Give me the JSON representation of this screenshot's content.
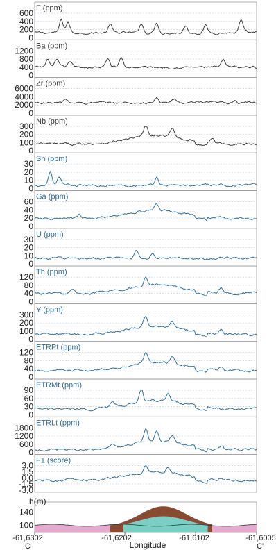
{
  "chart_data": {
    "type": "line",
    "xlabel": "Longitude",
    "x_ticks": [
      "-61,6302",
      "-61,6202",
      "-61,6102",
      "-61,6005"
    ],
    "endpoints": {
      "start": "C",
      "end": "C'"
    },
    "colors": {
      "black_series": "#3a3a3a",
      "blue_series": "#2f6f99",
      "grid": "#c6d6e4",
      "terrain_pink": "#e6a9cf",
      "terrain_brown": "#8a4a32",
      "terrain_teal": "#78d0c4"
    },
    "panels": [
      {
        "title": "F (ppm)",
        "title_color": "#333333",
        "series_color": "#3a3a3a",
        "yticks": [
          "600",
          "400",
          "200",
          "0"
        ],
        "ylim": [
          0,
          600
        ],
        "baseline": 120,
        "peaks": [
          [
            0.12,
            320
          ],
          [
            0.15,
            260
          ],
          [
            0.34,
            210
          ],
          [
            0.48,
            230
          ],
          [
            0.55,
            250
          ],
          [
            0.68,
            170
          ],
          [
            0.77,
            180
          ],
          [
            0.93,
            300
          ]
        ]
      },
      {
        "title": "Ba (ppm)",
        "title_color": "#333333",
        "series_color": "#3a3a3a",
        "yticks": [
          "1200",
          "800",
          "400",
          "0"
        ],
        "ylim": [
          0,
          1200
        ],
        "baseline": 400,
        "peaks": [
          [
            0.06,
            380
          ],
          [
            0.1,
            350
          ],
          [
            0.16,
            300
          ],
          [
            0.33,
            420
          ],
          [
            0.39,
            480
          ],
          [
            0.85,
            320
          ]
        ]
      },
      {
        "title": "Zr (ppm)",
        "title_color": "#333333",
        "series_color": "#3a3a3a",
        "yticks": [
          "6000",
          "4000",
          "2000",
          "0"
        ],
        "ylim": [
          0,
          6000
        ],
        "baseline": 2500,
        "peaks": [
          [
            0.14,
            900
          ],
          [
            0.55,
            1200
          ],
          [
            0.63,
            900
          ],
          [
            0.9,
            800
          ]
        ]
      },
      {
        "title": "Nb (ppm)",
        "title_color": "#333333",
        "series_color": "#3a3a3a",
        "yticks": [
          "300",
          "200",
          "100",
          "0"
        ],
        "ylim": [
          0,
          300
        ],
        "baseline": 80,
        "peaks": [
          [
            0.5,
            140
          ],
          [
            0.62,
            100
          ],
          [
            0.8,
            60
          ]
        ]
      },
      {
        "title": "Sn (ppm)",
        "title_color": "#2f6f99",
        "series_color": "#2f6f99",
        "yticks": [
          "30",
          "20",
          "10",
          "0"
        ],
        "ylim": [
          0,
          30
        ],
        "baseline": 4,
        "peaks": [
          [
            0.07,
            17
          ],
          [
            0.11,
            9
          ],
          [
            0.55,
            10
          ]
        ]
      },
      {
        "title": "Ga (ppm)",
        "title_color": "#2f6f99",
        "series_color": "#2f6f99",
        "yticks": [
          "60",
          "40",
          "20",
          "0"
        ],
        "ylim": [
          0,
          60
        ],
        "baseline": 18,
        "peaks": [
          [
            0.2,
            10
          ],
          [
            0.55,
            16
          ]
        ]
      },
      {
        "title": "U (ppm)",
        "title_color": "#2f6f99",
        "series_color": "#2f6f99",
        "yticks": [
          "30",
          "20",
          "10",
          "0"
        ],
        "ylim": [
          0,
          30
        ],
        "baseline": 7,
        "peaks": [
          [
            0.46,
            10
          ],
          [
            0.53,
            6
          ]
        ]
      },
      {
        "title": "Th (ppm)",
        "title_color": "#2f6f99",
        "series_color": "#2f6f99",
        "yticks": [
          "120",
          "80",
          "40",
          "0"
        ],
        "ylim": [
          0,
          120
        ],
        "baseline": 40,
        "peaks": [
          [
            0.17,
            20
          ],
          [
            0.5,
            40
          ],
          [
            0.84,
            25
          ]
        ]
      },
      {
        "title": "Y (ppm)",
        "title_color": "#2f6f99",
        "series_color": "#2f6f99",
        "yticks": [
          "300",
          "200",
          "100",
          "0"
        ],
        "ylim": [
          0,
          300
        ],
        "baseline": 60,
        "peaks": [
          [
            0.5,
            120
          ],
          [
            0.62,
            80
          ],
          [
            0.84,
            60
          ]
        ]
      },
      {
        "title": "ETRPt (ppm)",
        "title_color": "#2f6f99",
        "series_color": "#2f6f99",
        "yticks": [
          "120",
          "80",
          "40",
          "0"
        ],
        "ylim": [
          0,
          120
        ],
        "baseline": 30,
        "peaks": [
          [
            0.5,
            50
          ],
          [
            0.62,
            35
          ],
          [
            0.84,
            20
          ]
        ]
      },
      {
        "title": "ETRMt (ppm)",
        "title_color": "#2f6f99",
        "series_color": "#2f6f99",
        "yticks": [
          "90",
          "60",
          "30",
          "0"
        ],
        "ylim": [
          0,
          90
        ],
        "baseline": 20,
        "peaks": [
          [
            0.35,
            15
          ],
          [
            0.48,
            45
          ],
          [
            0.6,
            30
          ]
        ]
      },
      {
        "title": "ETRLt (ppm)",
        "title_color": "#2f6f99",
        "series_color": "#2f6f99",
        "yticks": [
          "1800",
          "1200",
          "600",
          "0"
        ],
        "ylim": [
          0,
          1800
        ],
        "baseline": 200,
        "peaks": [
          [
            0.35,
            250
          ],
          [
            0.5,
            900
          ],
          [
            0.55,
            700
          ],
          [
            0.62,
            500
          ],
          [
            0.84,
            200
          ]
        ]
      },
      {
        "title": "F1 (score)",
        "title_color": "#2f6f99",
        "series_color": "#2f6f99",
        "yticks": [
          "3,0",
          "1,5",
          "0,0",
          "-1,5",
          "-3,0"
        ],
        "ylim": [
          -3,
          3
        ],
        "baseline": -0.6,
        "peaks": [
          [
            0.5,
            1.8
          ],
          [
            0.6,
            1.2
          ],
          [
            0.84,
            0.5
          ]
        ]
      }
    ],
    "terrain": {
      "title": "h(m)",
      "yticks": [
        "140",
        "100"
      ],
      "ylim": [
        80,
        170
      ]
    }
  }
}
